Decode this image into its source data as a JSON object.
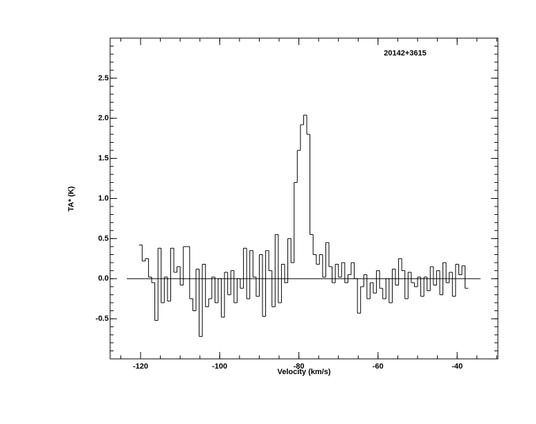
{
  "chart_data": {
    "type": "step",
    "title": "20142+3615",
    "xlabel": "Velocity (km/s)",
    "ylabel": "TA* (K)",
    "color": "#000000",
    "xlim": [
      -127.7,
      -29.7
    ],
    "ylim": [
      -1.0,
      3.0
    ],
    "xticks": [
      -120,
      -100,
      -80,
      -60,
      -40
    ],
    "yticks": [
      {
        "value": -0.5,
        "label": "-0.5"
      },
      {
        "value": 0,
        "label": "0.0"
      },
      0.5,
      {
        "value": 1,
        "label": "1.0"
      },
      1.5,
      {
        "value": 2,
        "label": "2.0"
      },
      2.5
    ],
    "x": [
      -120,
      -119.2,
      -118.4,
      -117.6,
      -116.8,
      -116,
      -115.2,
      -114.4,
      -113.6,
      -112.8,
      -112,
      -111.2,
      -110.4,
      -109.6,
      -108.8,
      -108,
      -107.2,
      -106.4,
      -105.6,
      -104.8,
      -104,
      -103.2,
      -102.4,
      -101.6,
      -100.8,
      -100,
      -99.2,
      -98.4,
      -97.6,
      -96.8,
      -96,
      -95.2,
      -94.4,
      -93.6,
      -92.8,
      -92,
      -91.2,
      -90.4,
      -89.6,
      -88.8,
      -88,
      -87.2,
      -86.4,
      -85.6,
      -84.8,
      -84,
      -83.2,
      -82.4,
      -81.6,
      -80.8,
      -80,
      -79.2,
      -78.4,
      -77.6,
      -76.8,
      -76,
      -75.2,
      -74.4,
      -73.6,
      -72.8,
      -72,
      -71.2,
      -70.4,
      -69.6,
      -68.8,
      -68,
      -67.2,
      -66.4,
      -65.6,
      -64.8,
      -64,
      -63.2,
      -62.4,
      -61.6,
      -60.8,
      -60,
      -59.2,
      -58.4,
      -57.6,
      -56.8,
      -56,
      -55.2,
      -54.4,
      -53.6,
      -52.8,
      -52,
      -51.2,
      -50.4,
      -49.6,
      -48.8,
      -48,
      -47.2,
      -46.4,
      -45.6,
      -44.8,
      -44,
      -43.2,
      -42.4,
      -41.6,
      -40.8,
      -40,
      -39.2,
      -38.4,
      -37.6
    ],
    "values": [
      0.42,
      0.22,
      0.25,
      0.02,
      -0.05,
      -0.52,
      0.38,
      -0.3,
      0.02,
      -0.28,
      0.38,
      0.08,
      0.15,
      -0.08,
      0.4,
      0.4,
      -0.25,
      -0.4,
      0.12,
      -0.72,
      0.18,
      -0.35,
      -0.25,
      0.02,
      -0.3,
      0.0,
      -0.48,
      0.08,
      -0.2,
      0.1,
      -0.3,
      0.0,
      -0.12,
      0.38,
      -0.25,
      0.35,
      0.02,
      -0.22,
      0.3,
      -0.47,
      0.35,
      0.1,
      -0.35,
      0.55,
      -0.3,
      0.18,
      -0.05,
      0.5,
      0.2,
      1.2,
      1.6,
      1.92,
      2.04,
      1.8,
      0.55,
      0.3,
      0.18,
      0.3,
      0.02,
      0.45,
      0.15,
      -0.05,
      0.18,
      0.02,
      0.2,
      -0.05,
      0.05,
      0.2,
      0.0,
      -0.43,
      -0.1,
      0.05,
      -0.25,
      -0.05,
      -0.18,
      0.1,
      -0.12,
      -0.25,
      0.0,
      -0.3,
      0.12,
      -0.08,
      0.25,
      0.1,
      -0.25,
      0.08,
      -0.05,
      -0.1,
      0.02,
      -0.22,
      0.02,
      -0.15,
      0.15,
      -0.08,
      0.1,
      -0.2,
      0.2,
      -0.05,
      0.08,
      -0.22,
      0.18,
      0.05,
      0.16,
      -0.12
    ]
  }
}
